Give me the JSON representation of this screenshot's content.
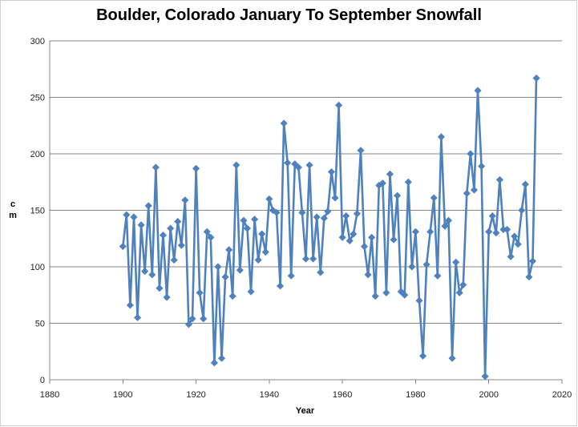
{
  "chart_data": {
    "type": "line",
    "title": "Boulder, Colorado January To September Snowfall",
    "xlabel": "Year",
    "ylabel": "cm",
    "xlim": [
      1880,
      2020
    ],
    "ylim": [
      0,
      300
    ],
    "x_ticks": [
      1880,
      1900,
      1920,
      1940,
      1960,
      1980,
      2000,
      2020
    ],
    "y_ticks": [
      0,
      50,
      100,
      150,
      200,
      250,
      300
    ],
    "grid": "horizontal",
    "legend": "none",
    "series_color": "#4F81BD",
    "series": [
      {
        "x": [
          1900,
          1901,
          1902,
          1903,
          1904,
          1905,
          1906,
          1907,
          1908,
          1909,
          1910,
          1911,
          1912,
          1913,
          1914,
          1915,
          1916,
          1917,
          1918,
          1919,
          1920,
          1921,
          1922,
          1923,
          1924,
          1925,
          1926,
          1927,
          1928,
          1929,
          1930,
          1931,
          1932,
          1933,
          1934,
          1935,
          1936,
          1937,
          1938,
          1939,
          1940,
          1941,
          1942,
          1943,
          1944,
          1945,
          1946,
          1947,
          1948,
          1949,
          1950,
          1951,
          1952,
          1953,
          1954,
          1955,
          1956,
          1957,
          1958,
          1959,
          1960,
          1961,
          1962,
          1963,
          1964,
          1965,
          1966,
          1967,
          1968,
          1969,
          1970,
          1971,
          1972,
          1973,
          1974,
          1975,
          1976,
          1977,
          1978,
          1979,
          1980,
          1981,
          1982,
          1983,
          1984,
          1985,
          1986,
          1987,
          1988,
          1989,
          1990,
          1991,
          1992,
          1993,
          1994,
          1995,
          1996,
          1997,
          1998,
          1999,
          2000,
          2001,
          2002,
          2003,
          2004,
          2005,
          2006,
          2007,
          2008,
          2009,
          2010,
          2011,
          2012,
          2013
        ],
        "values": [
          118,
          146,
          66,
          144,
          55,
          137,
          96,
          154,
          93,
          188,
          81,
          128,
          73,
          134,
          106,
          140,
          119,
          159,
          49,
          54,
          187,
          77,
          54,
          131,
          126,
          15,
          100,
          19,
          91,
          115,
          74,
          190,
          97,
          141,
          134,
          78,
          142,
          106,
          129,
          113,
          160,
          150,
          148,
          83,
          227,
          192,
          92,
          191,
          188,
          148,
          107,
          190,
          107,
          144,
          95,
          143,
          149,
          184,
          161,
          243,
          126,
          145,
          123,
          129,
          147,
          203,
          118,
          93,
          126,
          74,
          172,
          174,
          77,
          182,
          124,
          163,
          78,
          75,
          175,
          100,
          131,
          70,
          21,
          102,
          131,
          161,
          92,
          215,
          136,
          141,
          19,
          104,
          77,
          84,
          165,
          200,
          168,
          256,
          189,
          3,
          131,
          145,
          130,
          177,
          133,
          133,
          109,
          127,
          120,
          150,
          173,
          91,
          105,
          267
        ]
      }
    ]
  }
}
